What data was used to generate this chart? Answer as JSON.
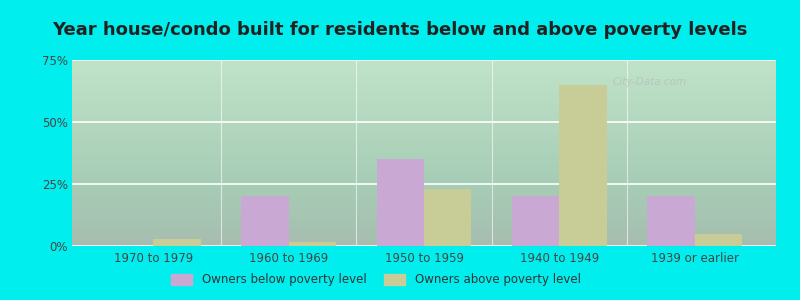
{
  "title": "Year house/condo built for residents below and above poverty levels",
  "categories": [
    "1970 to 1979",
    "1960 to 1969",
    "1950 to 1959",
    "1940 to 1949",
    "1939 or earlier"
  ],
  "below_poverty": [
    0.0,
    20.0,
    35.0,
    20.0,
    20.0
  ],
  "above_poverty": [
    3.0,
    1.5,
    23.0,
    65.0,
    5.0
  ],
  "below_color": "#c9a8d4",
  "above_color": "#c8cc96",
  "outer_bg": "#00eeee",
  "plot_bg_top": "#f5fff5",
  "plot_bg_bottom": "#d8f0d8",
  "ylim": [
    0,
    75
  ],
  "yticks": [
    0,
    25,
    50,
    75
  ],
  "ytick_labels": [
    "0%",
    "25%",
    "50%",
    "75%"
  ],
  "legend_below": "Owners below poverty level",
  "legend_above": "Owners above poverty level",
  "title_fontsize": 13,
  "bar_width": 0.35,
  "watermark": "City-Data.com"
}
